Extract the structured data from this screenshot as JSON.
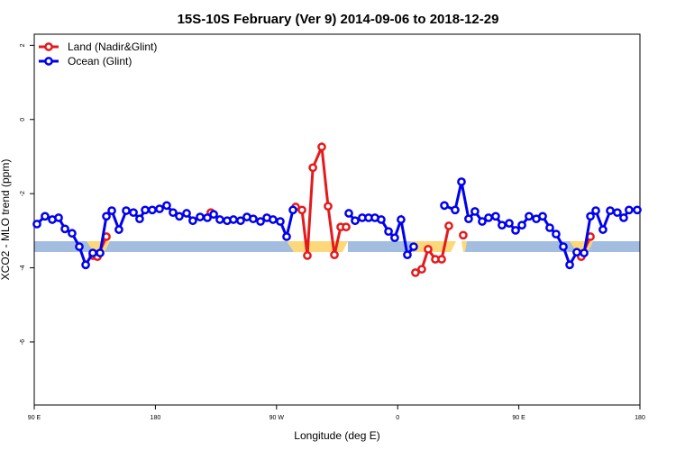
{
  "chart_data": {
    "type": "line",
    "title": "15S-10S February (Ver 9)   2014-09-06 to 2018-12-29",
    "xlabel": "Longitude (deg E)",
    "ylabel": "XCO2 - MLO trend (ppm)",
    "xlim": [
      90,
      540
    ],
    "ylim": [
      -7.7,
      2.3
    ],
    "xticks": [
      {
        "value": 90,
        "label": "90 E"
      },
      180,
      {
        "value": 270,
        "label": "90 W"
      },
      {
        "value": 360,
        "label": "0"
      },
      {
        "value": 450,
        "label": "90 E"
      },
      {
        "value": 540,
        "label": "180"
      }
    ],
    "yticks": [
      2,
      0,
      -2,
      -4,
      -6
    ],
    "legend": "topleft",
    "series": [
      {
        "name": "Land (Nadir&Glint)",
        "color": "#e41a1c",
        "x": [
          133.5,
          136.9,
          143.6,
          null,
          221.2,
          null,
          284.2,
          288.9,
          292.9,
          297.0,
          303.6,
          308.3,
          313.0,
          317.7,
          321.7,
          null,
          373.2,
          377.9,
          382.6,
          388.0,
          392.7,
          398.0,
          null,
          408.7,
          null,
          496.4,
          503.2
        ],
        "values": [
          -3.67,
          -3.7,
          -3.16,
          null,
          -2.51,
          null,
          -2.36,
          -2.44,
          -3.67,
          -1.3,
          -0.74,
          -2.34,
          -3.65,
          -2.9,
          -2.9,
          null,
          -4.13,
          -4.04,
          -3.5,
          -3.77,
          -3.77,
          -2.87,
          null,
          -3.12,
          null,
          -3.7,
          -3.16
        ]
      },
      {
        "name": "Ocean (Glint)",
        "color": "#0000ee",
        "x": [
          92.0,
          98.0,
          103.4,
          108.1,
          112.8,
          118.1,
          123.5,
          128.2,
          133.5,
          138.9,
          143.6,
          147.6,
          152.9,
          158.3,
          163.7,
          168.3,
          172.4,
          177.7,
          183.1,
          188.4,
          193.1,
          197.8,
          203.2,
          207.8,
          213.2,
          218.6,
          223.3,
          227.9,
          233.3,
          238.0,
          243.3,
          248.0,
          252.7,
          258.1,
          262.8,
          267.4,
          272.8,
          277.5,
          282.2,
          null,
          323.7,
          328.4,
          333.7,
          338.4,
          343.1,
          347.8,
          353.2,
          357.8,
          362.5,
          367.2,
          371.9,
          null,
          394.7,
          402.7,
          407.4,
          412.7,
          417.4,
          422.8,
          427.5,
          432.8,
          437.5,
          442.9,
          447.6,
          452.3,
          457.6,
          463.0,
          467.7,
          473.0,
          477.7,
          483.1,
          487.8,
          493.1,
          498.5,
          503.2,
          507.2,
          512.5,
          517.9,
          523.2,
          527.9,
          531.9,
          538.0
        ],
        "values": [
          -2.82,
          -2.61,
          -2.7,
          -2.65,
          -2.95,
          -3.07,
          -3.43,
          -3.92,
          -3.6,
          -3.6,
          -2.61,
          -2.46,
          -2.97,
          -2.46,
          -2.51,
          -2.68,
          -2.44,
          -2.44,
          -2.41,
          -2.32,
          -2.51,
          -2.61,
          -2.53,
          -2.73,
          -2.63,
          -2.65,
          -2.56,
          -2.7,
          -2.73,
          -2.7,
          -2.73,
          -2.63,
          -2.68,
          -2.75,
          -2.65,
          -2.7,
          -2.75,
          -3.16,
          -2.44,
          null,
          -2.53,
          -2.73,
          -2.65,
          -2.65,
          -2.65,
          -2.7,
          -3.02,
          -3.19,
          -2.7,
          -3.65,
          -3.43,
          null,
          -2.32,
          -2.44,
          -1.68,
          -2.68,
          -2.48,
          -2.75,
          -2.65,
          -2.61,
          -2.85,
          -2.8,
          -2.99,
          -2.85,
          -2.61,
          -2.68,
          -2.61,
          -2.92,
          -3.09,
          -3.43,
          -3.92,
          -3.58,
          -3.6,
          -2.61,
          -2.46,
          -2.97,
          -2.46,
          -2.51,
          -2.65,
          -2.44,
          -2.44
        ]
      }
    ]
  }
}
